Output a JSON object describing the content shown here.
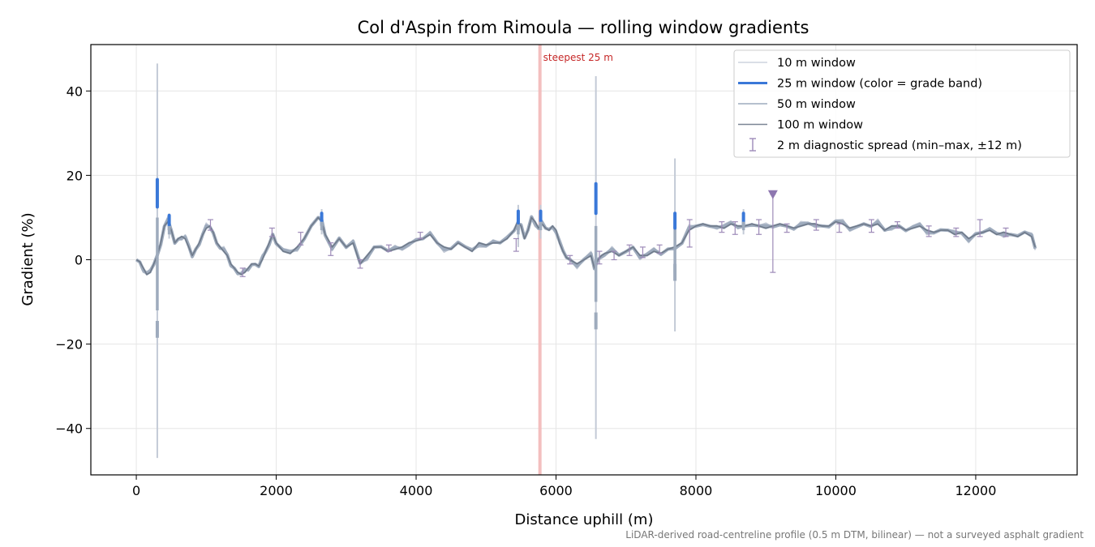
{
  "chart_data": {
    "type": "line",
    "title": "Col d'Aspin from Rimoula — rolling window gradients",
    "xlabel": "Distance uphill (m)",
    "ylabel": "Gradient (%)",
    "xlim": [
      -650,
      13450
    ],
    "ylim": [
      -51,
      51
    ],
    "xticks": [
      0,
      2000,
      4000,
      6000,
      8000,
      10000,
      12000
    ],
    "yticks": [
      -40,
      -20,
      0,
      20,
      40
    ],
    "xtick_labels": [
      "0",
      "2000",
      "4000",
      "6000",
      "8000",
      "10000",
      "12000"
    ],
    "ytick_labels": [
      "−40",
      "−20",
      "0",
      "20",
      "40"
    ],
    "grid": true,
    "legend_position": "top-right",
    "legend": [
      {
        "label": "10 m window",
        "color": "#c3cad6",
        "style": "thin-line"
      },
      {
        "label": "25 m window (color = grade band)",
        "color": "#3a78d8",
        "style": "thick-line"
      },
      {
        "label": "50 m window",
        "color": "#9eabbd",
        "style": "line"
      },
      {
        "label": "100 m window",
        "color": "#7b8594",
        "style": "line"
      },
      {
        "label": "2 m diagnostic spread (min–max, ±12 m)",
        "color": "#9d8ab8",
        "style": "errorbar"
      }
    ],
    "steepest_marker": {
      "label": "steepest 25 m",
      "x": 5770,
      "color": "#f2b8b8",
      "label_color": "#c62828"
    },
    "peak_marker": {
      "x": 9100,
      "y": 15.5,
      "color": "#8e77b0"
    },
    "profile": {
      "x": [
        0,
        50,
        100,
        150,
        200,
        250,
        300,
        350,
        400,
        450,
        500,
        550,
        600,
        650,
        700,
        750,
        800,
        850,
        900,
        950,
        1000,
        1050,
        1100,
        1150,
        1200,
        1250,
        1300,
        1350,
        1400,
        1450,
        1500,
        1550,
        1600,
        1650,
        1700,
        1750,
        1800,
        1850,
        1900,
        1950,
        2000,
        2100,
        2200,
        2300,
        2400,
        2500,
        2600,
        2650,
        2700,
        2800,
        2900,
        3000,
        3100,
        3200,
        3300,
        3400,
        3500,
        3600,
        3700,
        3800,
        3900,
        4000,
        4100,
        4200,
        4300,
        4400,
        4500,
        4600,
        4700,
        4800,
        4900,
        5000,
        5100,
        5200,
        5300,
        5400,
        5450,
        5500,
        5550,
        5600,
        5650,
        5700,
        5750,
        5800,
        5850,
        5900,
        5950,
        6000,
        6050,
        6100,
        6150,
        6200,
        6300,
        6400,
        6500,
        6550,
        6600,
        6650,
        6700,
        6800,
        6900,
        7000,
        7100,
        7200,
        7300,
        7400,
        7500,
        7600,
        7700,
        7800,
        7900,
        8000,
        8100,
        8200,
        8300,
        8400,
        8500,
        8600,
        8700,
        8800,
        8900,
        9000,
        9100,
        9200,
        9300,
        9400,
        9500,
        9600,
        9700,
        9800,
        9900,
        10000,
        10100,
        10200,
        10300,
        10400,
        10500,
        10600,
        10700,
        10800,
        10900,
        11000,
        11100,
        11200,
        11300,
        11400,
        11500,
        11600,
        11700,
        11800,
        11900,
        12000,
        12100,
        12200,
        12300,
        12400,
        12500,
        12600,
        12700,
        12800,
        12850
      ],
      "y": [
        0,
        -0.5,
        -2,
        -3.5,
        -3,
        -1,
        1,
        4,
        8,
        9,
        7,
        4,
        5,
        5.5,
        5,
        3,
        1,
        2.5,
        4,
        6,
        7.5,
        8,
        6.5,
        4,
        3,
        2,
        1,
        -1,
        -2,
        -3,
        -3.5,
        -3,
        -2,
        -1,
        -1,
        -1.5,
        0,
        2,
        4,
        6,
        4,
        2,
        1.5,
        3,
        5,
        8,
        10,
        9,
        6,
        3,
        5,
        3,
        4,
        -1,
        1,
        3,
        3,
        2,
        2.5,
        3,
        4,
        4.5,
        5,
        6,
        4,
        3,
        2.5,
        4,
        3,
        2,
        4,
        3.5,
        4,
        4,
        5,
        7,
        9,
        8,
        5,
        7,
        10,
        9,
        7.5,
        8.5,
        7.5,
        7,
        8,
        7,
        4,
        2,
        0.5,
        0,
        -1,
        0,
        1,
        -2,
        0,
        1,
        1.5,
        2,
        1,
        2,
        3,
        1,
        1,
        2,
        1.5,
        2.5,
        3,
        4,
        7,
        8,
        8.5,
        8,
        8,
        7.5,
        8.5,
        8,
        8,
        8.5,
        8,
        7.5,
        8,
        8.5,
        8,
        7.5,
        8,
        8.5,
        8.5,
        8,
        8,
        9,
        8.5,
        7.5,
        8,
        8.5,
        8,
        8.5,
        7,
        8,
        8,
        7,
        7.5,
        8,
        7,
        6.5,
        7,
        7,
        6,
        6.5,
        5,
        6,
        6.5,
        7,
        6,
        6.5,
        6,
        5.5,
        6.5,
        5.5,
        3
      ]
    },
    "spikes": [
      {
        "x": 300,
        "w10": [
          -47,
          46.5
        ],
        "w25": [
          -18.5,
          19
        ],
        "w50": [
          -12,
          10
        ]
      },
      {
        "x": 6570,
        "w10": [
          -42.5,
          43.5
        ],
        "w25": [
          -16.5,
          18
        ],
        "w50": [
          -10,
          8
        ]
      },
      {
        "x": 7700,
        "w10": [
          -17,
          24
        ],
        "w25": [
          -5,
          11
        ],
        "w50": [
          -3,
          8
        ]
      },
      {
        "x": 5460,
        "w10": [
          3,
          13
        ],
        "w25": [
          7,
          11.5
        ],
        "w50": [
          6,
          10
        ]
      },
      {
        "x": 5780,
        "w10": [
          5,
          13
        ],
        "w25": [
          8,
          11.5
        ],
        "w50": [
          7,
          10
        ]
      },
      {
        "x": 2650,
        "w10": [
          6,
          12
        ],
        "w25": [
          8,
          11
        ],
        "w50": [
          7,
          10
        ]
      },
      {
        "x": 8680,
        "w10": [
          6,
          12
        ],
        "w25": [
          8,
          11
        ],
        "w50": [
          7,
          10
        ]
      },
      {
        "x": 470,
        "w10": [
          5,
          11
        ],
        "w25": [
          7,
          10.5
        ],
        "w50": [
          6,
          9.5
        ]
      }
    ],
    "error_bars": [
      {
        "x": 1060,
        "low": 7,
        "high": 9.5
      },
      {
        "x": 1520,
        "low": -4,
        "high": -2
      },
      {
        "x": 1940,
        "low": 5.5,
        "high": 7.5
      },
      {
        "x": 2350,
        "low": 3.5,
        "high": 6.5
      },
      {
        "x": 2780,
        "low": 1,
        "high": 4
      },
      {
        "x": 3200,
        "low": -2,
        "high": 0
      },
      {
        "x": 3610,
        "low": 2,
        "high": 3.5
      },
      {
        "x": 4060,
        "low": 5,
        "high": 6.5
      },
      {
        "x": 5430,
        "low": 2,
        "high": 5
      },
      {
        "x": 6200,
        "low": -1,
        "high": 1
      },
      {
        "x": 6620,
        "low": -1,
        "high": 2
      },
      {
        "x": 6830,
        "low": 0,
        "high": 2
      },
      {
        "x": 7050,
        "low": 1,
        "high": 3.5
      },
      {
        "x": 7240,
        "low": 0.5,
        "high": 3
      },
      {
        "x": 7480,
        "low": 1.5,
        "high": 3.5
      },
      {
        "x": 7910,
        "low": 3,
        "high": 9.5
      },
      {
        "x": 8370,
        "low": 6.5,
        "high": 9
      },
      {
        "x": 8560,
        "low": 6,
        "high": 9
      },
      {
        "x": 8900,
        "low": 6,
        "high": 9.5
      },
      {
        "x": 9100,
        "low": -3,
        "high": 15.5
      },
      {
        "x": 9300,
        "low": 6.5,
        "high": 8.5
      },
      {
        "x": 9720,
        "low": 7,
        "high": 9.5
      },
      {
        "x": 10050,
        "low": 6.5,
        "high": 8.5
      },
      {
        "x": 10510,
        "low": 6.5,
        "high": 9.5
      },
      {
        "x": 10880,
        "low": 7.5,
        "high": 9
      },
      {
        "x": 11330,
        "low": 5.5,
        "high": 8
      },
      {
        "x": 11720,
        "low": 5.5,
        "high": 7.5
      },
      {
        "x": 12060,
        "low": 5.5,
        "high": 9.5
      },
      {
        "x": 12430,
        "low": 5.5,
        "high": 7.5
      }
    ],
    "footnote": "LiDAR-derived road-centreline profile (0.5 m DTM, bilinear) — not a surveyed asphalt gradient"
  }
}
